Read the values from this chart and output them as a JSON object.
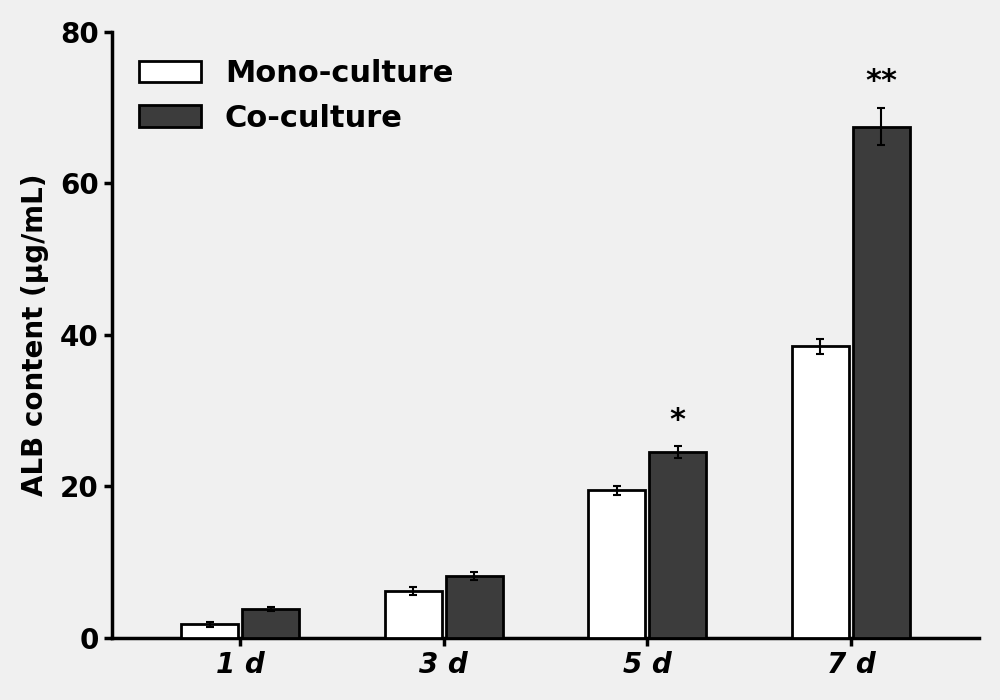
{
  "categories": [
    "1 d",
    "3 d",
    "5 d",
    "7 d"
  ],
  "mono_values": [
    1.8,
    6.2,
    19.5,
    38.5
  ],
  "co_values": [
    3.8,
    8.2,
    24.5,
    67.5
  ],
  "mono_errors": [
    0.3,
    0.5,
    0.6,
    1.0
  ],
  "co_errors": [
    0.3,
    0.5,
    0.8,
    2.5
  ],
  "mono_color": "#ffffff",
  "co_color": "#3c3c3c",
  "bar_edge_color": "#000000",
  "ylabel": "ALB content (μg/mL)",
  "ylim": [
    0,
    80
  ],
  "yticks": [
    0,
    20,
    40,
    60,
    80
  ],
  "bar_width": 0.28,
  "group_positions": [
    1,
    2,
    3,
    4
  ],
  "significance_5d": "*",
  "significance_7d": "**",
  "legend_mono": "Mono-culture",
  "legend_co": "Co-culture",
  "background_color": "#f0f0f0",
  "linewidth": 2.0,
  "capsize": 3,
  "error_linewidth": 1.5,
  "fontsize_ticks": 20,
  "fontsize_ylabel": 20,
  "fontsize_legend": 22,
  "fontsize_sig": 22
}
